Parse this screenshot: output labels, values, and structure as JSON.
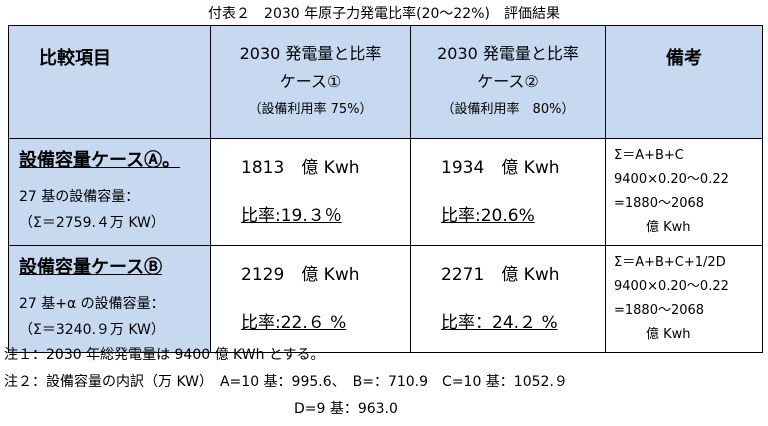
{
  "title": "付表２　2030 年原子力発電比率(20～22%)　評価結果",
  "table": {
    "header": [
      [
        "比較項目"
      ],
      [
        "2030 発電量と比率",
        "ケース①",
        "（設備利用率 75%）"
      ],
      [
        "2030 発電量と比率",
        "ケース②",
        "（設備利用率　80%）"
      ],
      [
        "備考"
      ]
    ],
    "rows": [
      [
        [
          "設備容量ケースⒶ。",
          "27 基の設備容量：",
          "（Σ＝2759.４万 KW）"
        ],
        [
          "1813　億 Kwh",
          "比率:19.３％"
        ],
        [
          "1934　億 Kwh",
          "比率:20.6%"
        ],
        [
          "Σ＝A+B+C",
          "9400×0.20～0.22",
          "=1880～2068",
          "億 Kwh"
        ]
      ],
      [
        [
          "設備容量ケースⒷ",
          "27 基+α の設備容量：",
          "（Σ＝3240.９万 KW）"
        ],
        [
          "2129　億 Kwh",
          "比率:22.６ %"
        ],
        [
          "2271　億 Kwh",
          "比率：24.２ %"
        ],
        [
          "Σ＝A+B+C+1/2D",
          "9400×0.20～0.22",
          "=1880～2068",
          "億 Kwh"
        ]
      ]
    ]
  },
  "notes": [
    "注１：2030 年総発電量は 9400 億 KWh とする。",
    "注２：設備容量の内訳（万 KW）　A=10 基：995.6、　B=：710.9　C=10 基：1052.９",
    "D=9 基：963.0"
  ]
}
